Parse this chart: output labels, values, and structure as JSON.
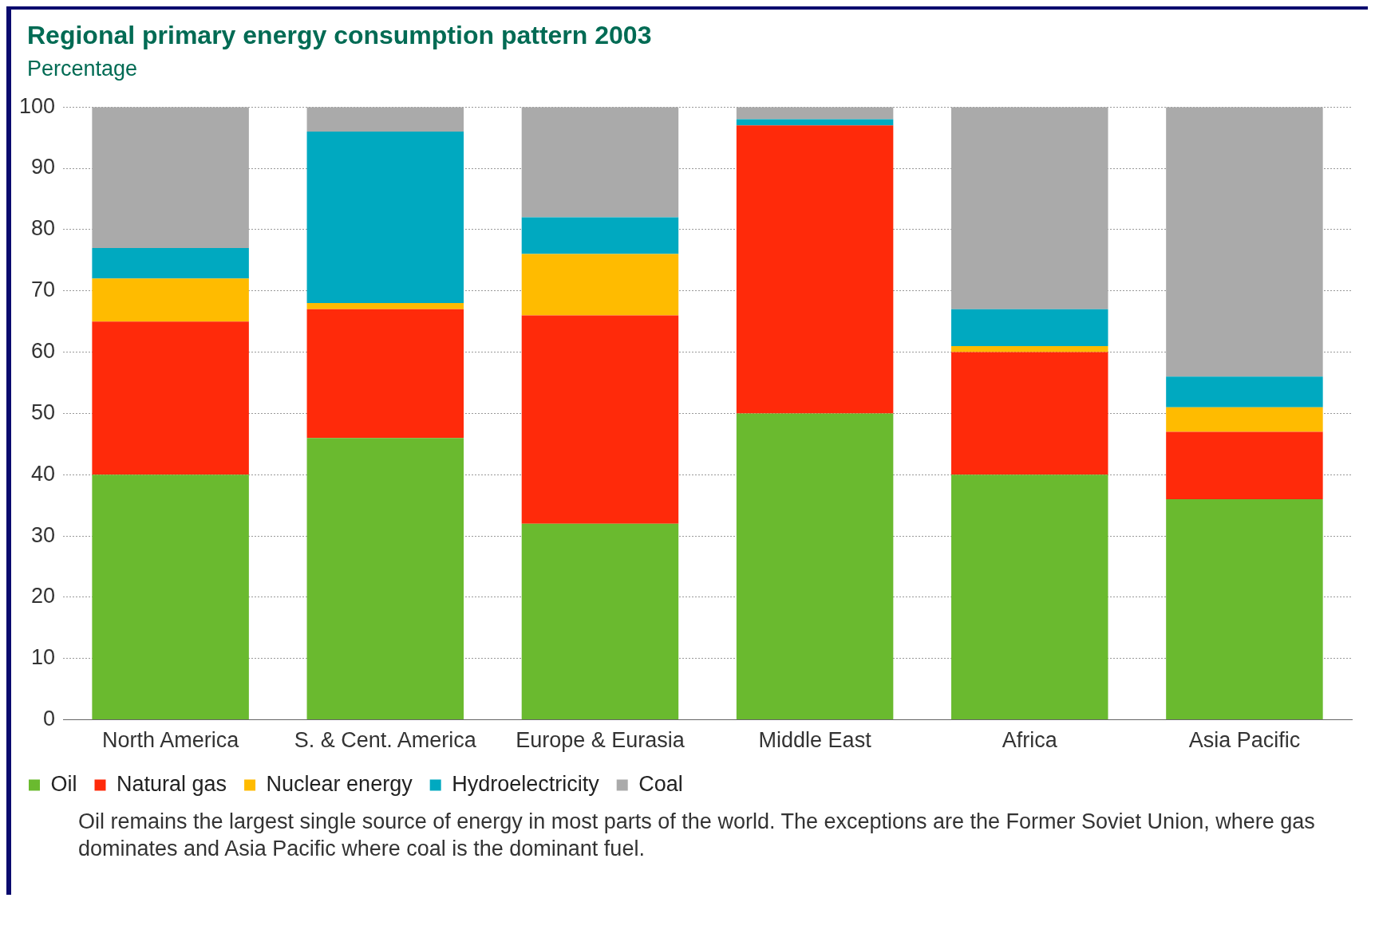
{
  "chart_data": {
    "type": "bar",
    "title": "Regional primary energy consumption pattern 2003",
    "subtitle": "Percentage",
    "categories": [
      "North America",
      "S. & Cent. America",
      "Europe & Eurasia",
      "Middle East",
      "Africa",
      "Asia Pacific"
    ],
    "stacked": true,
    "ylim": [
      0,
      100
    ],
    "yticks": [
      0,
      10,
      20,
      30,
      40,
      50,
      60,
      70,
      80,
      90,
      100
    ],
    "grid": "y",
    "legend": "bottom left",
    "series": [
      {
        "name": "Oil",
        "color": "#6aba2f",
        "values": [
          40,
          46,
          32,
          50,
          40,
          36
        ]
      },
      {
        "name": "Natural gas",
        "color": "#ff2a0a",
        "values": [
          25,
          21,
          34,
          47,
          20,
          11
        ]
      },
      {
        "name": "Nuclear energy",
        "color": "#ffbb00",
        "values": [
          7,
          1,
          10,
          0,
          1,
          4
        ]
      },
      {
        "name": "Hydroelectricity",
        "color": "#00a9c0",
        "values": [
          5,
          28,
          6,
          1,
          6,
          5
        ]
      },
      {
        "name": "Coal",
        "color": "#aaaaaa",
        "values": [
          23,
          4,
          18,
          2,
          33,
          44
        ]
      }
    ],
    "annotations": [
      "Oil remains the largest single source of energy in most parts of the world. The exceptions are the Former Soviet Union, where gas dominates and Asia Pacific where coal is the dominant fuel."
    ]
  }
}
